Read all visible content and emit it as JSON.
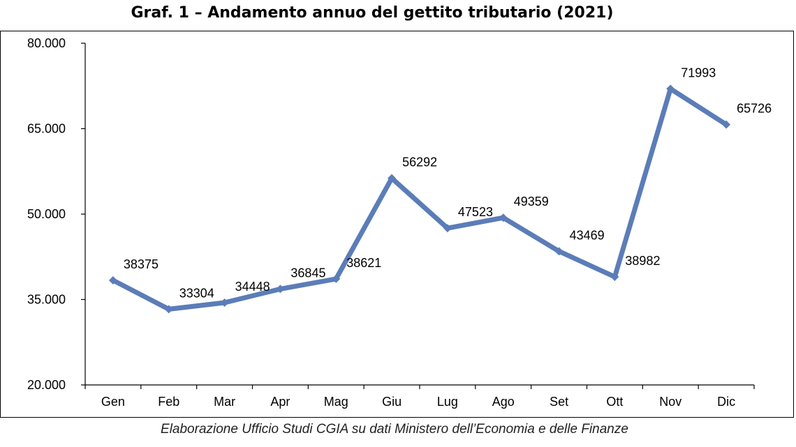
{
  "chart_data": {
    "type": "line",
    "title": "Graf. 1 – Andamento annuo del gettito tributario (2021)",
    "xlabel": "",
    "ylabel": "",
    "categories": [
      "Gen",
      "Feb",
      "Mar",
      "Apr",
      "Mag",
      "Giu",
      "Lug",
      "Ago",
      "Set",
      "Ott",
      "Nov",
      "Dic"
    ],
    "series": [
      {
        "values": [
          38375,
          33304,
          34448,
          36845,
          38621,
          56292,
          47523,
          49359,
          43469,
          38982,
          71993,
          65726
        ]
      }
    ],
    "ylim": [
      20000,
      80000
    ],
    "yticks": [
      20000,
      35000,
      50000,
      65000,
      80000
    ],
    "ytick_labels": [
      "20.000",
      "35.000",
      "50.000",
      "65.000",
      "80.000"
    ],
    "data_labels": [
      "38375",
      "33304",
      "34448",
      "36845",
      "38621",
      "56292",
      "47523",
      "49359",
      "43469",
      "38982",
      "71993",
      "65726"
    ],
    "grid": false,
    "legend": "none",
    "line_color": "#5B7DB8"
  },
  "caption": "Elaborazione  Ufficio Studi CGIA su dati Ministero dell’Economia e delle Finanze"
}
